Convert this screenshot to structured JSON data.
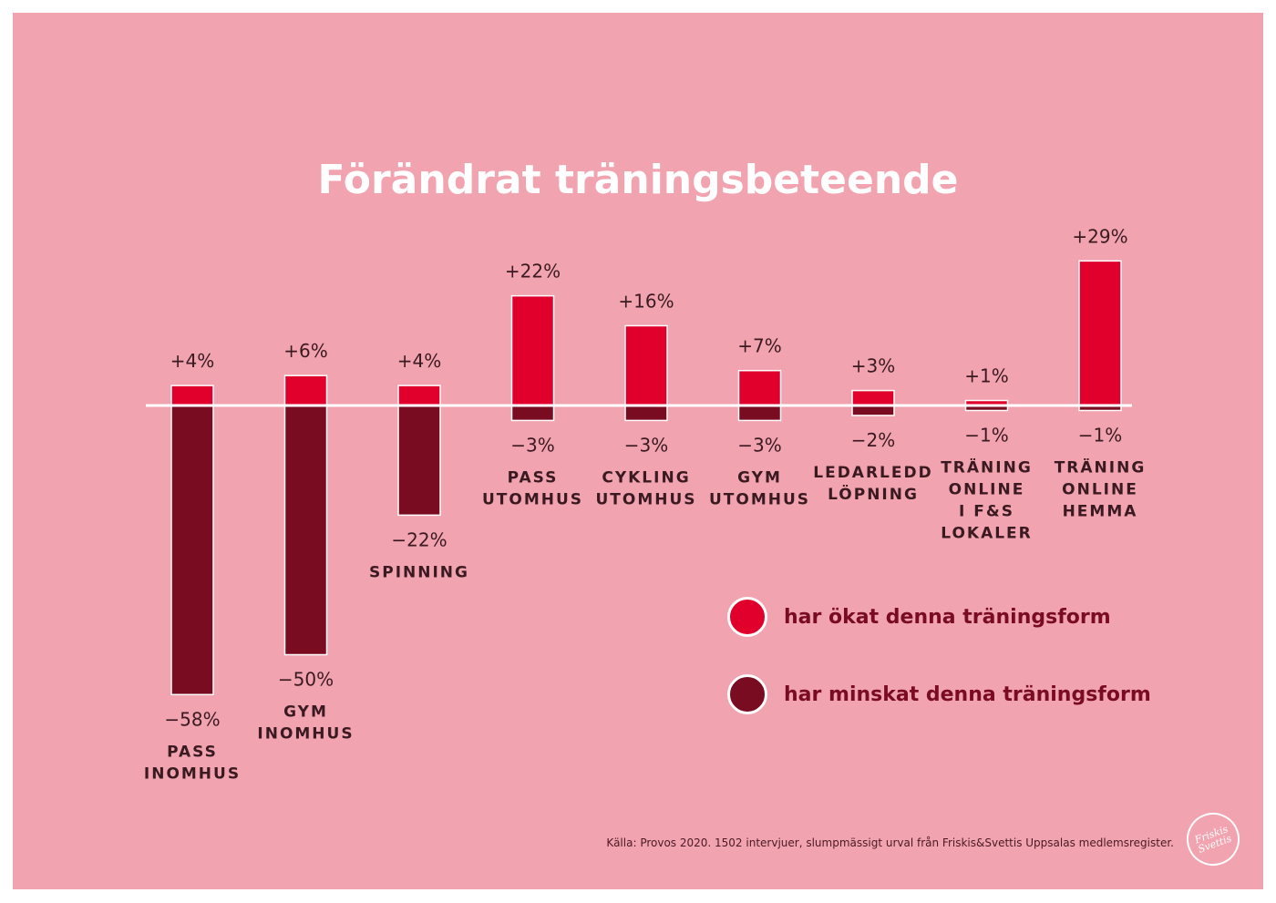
{
  "title": "Förändrat träningsbeteende",
  "source": "Källa: Provos 2020. 1502 intervjuer, slumpmässigt urval från Friskis&Svettis Uppsalas medlemsregister.",
  "logo_text": "Friskis Svettis",
  "colors": {
    "increase": "#e0002b",
    "decrease": "#7a0c22",
    "background": "#f2a3b0",
    "baseline": "#ffffff"
  },
  "legend": [
    {
      "label": "har ökat denna träningsform",
      "color": "#e0002b"
    },
    {
      "label": "har minskat denna träningsform",
      "color": "#7a0c22"
    }
  ],
  "chart_data": {
    "type": "bar",
    "categories": [
      [
        "PASS",
        "INOMHUS"
      ],
      [
        "GYM",
        "INOMHUS"
      ],
      [
        "SPINNING"
      ],
      [
        "PASS",
        "UTOMHUS"
      ],
      [
        "CYKLING",
        "UTOMHUS"
      ],
      [
        "GYM",
        "UTOMHUS"
      ],
      [
        "LEDARLEDD",
        "LÖPNING"
      ],
      [
        "TRÄNING",
        "ONLINE",
        "I F&S",
        "LOKALER"
      ],
      [
        "TRÄNING",
        "ONLINE",
        "HEMMA"
      ]
    ],
    "series": [
      {
        "name": "har ökat denna träningsform",
        "values": [
          4,
          6,
          4,
          22,
          16,
          7,
          3,
          1,
          29
        ],
        "labels": [
          "+4%",
          "+6%",
          "+4%",
          "+22%",
          "+16%",
          "+7%",
          "+3%",
          "+1%",
          "+29%"
        ]
      },
      {
        "name": "har minskat denna träningsform",
        "values": [
          -58,
          -50,
          -22,
          -3,
          -3,
          -3,
          -2,
          -1,
          -1
        ],
        "labels": [
          "−58%",
          "−50%",
          "−22%",
          "−3%",
          "−3%",
          "−3%",
          "−2%",
          "−1%",
          "−1%"
        ]
      }
    ],
    "ylim": [
      -58,
      29
    ],
    "grid": false,
    "legend_position": "bottom-right"
  }
}
